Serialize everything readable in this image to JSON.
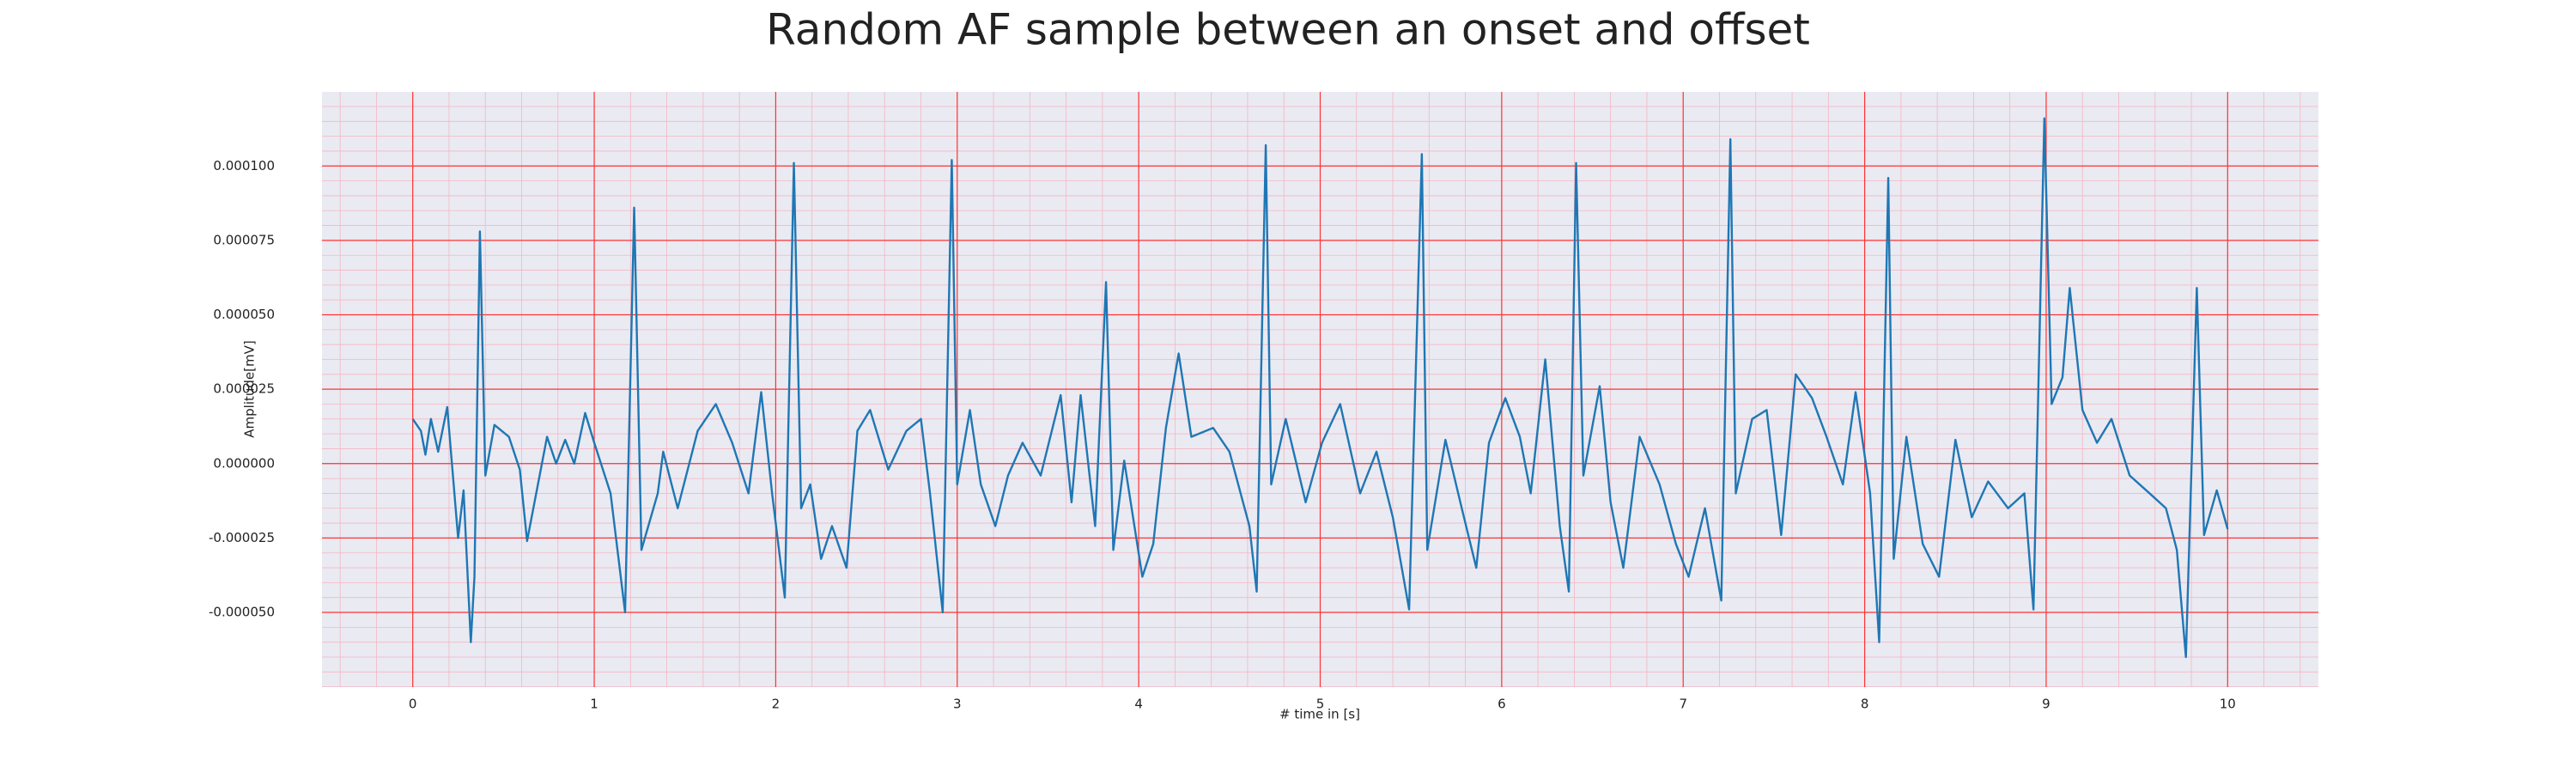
{
  "chart_data": {
    "type": "line",
    "title": "Random AF sample between an onset and offset",
    "xlabel": "# time in [s]",
    "ylabel": "Amplitude[mV]",
    "color": "#1f77b4",
    "grid": true,
    "minor_grid": true,
    "xlim": [
      -0.5,
      10.5
    ],
    "ylim": [
      -7.51e-05,
      0.0001249
    ],
    "xticks": [
      0,
      1,
      2,
      3,
      4,
      5,
      6,
      7,
      8,
      9,
      10
    ],
    "yticks": [
      {
        "value": -5e-05,
        "label": "-0.000050"
      },
      {
        "value": -2.5e-05,
        "label": "-0.000025"
      },
      {
        "value": 0,
        "label": "0.000000"
      },
      {
        "value": 2.5e-05,
        "label": "0.000025"
      },
      {
        "value": 5e-05,
        "label": "0.000050"
      },
      {
        "value": 7.5e-05,
        "label": "0.000075"
      },
      {
        "value": 0.0001,
        "label": "0.000100"
      }
    ],
    "x": [
      0,
      0.045,
      0.07,
      0.1,
      0.14,
      0.19,
      0.25,
      0.28,
      0.32,
      0.34,
      0.37,
      0.4,
      0.45,
      0.53,
      0.59,
      0.63,
      0.74,
      0.79,
      0.84,
      0.89,
      0.95,
      1.0,
      1.09,
      1.17,
      1.22,
      1.26,
      1.35,
      1.38,
      1.46,
      1.57,
      1.67,
      1.76,
      1.85,
      1.92,
      1.98,
      2.05,
      2.1,
      2.14,
      2.19,
      2.25,
      2.31,
      2.39,
      2.45,
      2.52,
      2.62,
      2.72,
      2.8,
      2.85,
      2.92,
      2.97,
      3.0,
      3.07,
      3.13,
      3.21,
      3.28,
      3.36,
      3.46,
      3.57,
      3.63,
      3.68,
      3.76,
      3.82,
      3.86,
      3.92,
      4.02,
      4.08,
      4.15,
      4.22,
      4.29,
      4.41,
      4.5,
      4.61,
      4.65,
      4.7,
      4.73,
      4.81,
      4.92,
      5.01,
      5.11,
      5.22,
      5.31,
      5.4,
      5.49,
      5.56,
      5.59,
      5.69,
      5.78,
      5.86,
      5.93,
      6.02,
      6.1,
      6.16,
      6.24,
      6.32,
      6.37,
      6.41,
      6.45,
      6.54,
      6.6,
      6.67,
      6.76,
      6.87,
      6.96,
      7.03,
      7.12,
      7.21,
      7.26,
      7.29,
      7.38,
      7.46,
      7.54,
      7.62,
      7.71,
      7.79,
      7.88,
      7.95,
      8.03,
      8.08,
      8.13,
      8.16,
      8.23,
      8.32,
      8.41,
      8.5,
      8.59,
      8.68,
      8.79,
      8.88,
      8.93,
      8.99,
      9.03,
      9.09,
      9.13,
      9.2,
      9.28,
      9.36,
      9.46,
      9.57,
      9.66,
      9.72,
      9.77,
      9.83,
      9.87,
      9.94,
      10.0
    ],
    "values": [
      1.5e-05,
      1.1e-05,
      3e-06,
      1.5e-05,
      4e-06,
      1.9e-05,
      -2.5e-05,
      -9e-06,
      -6e-05,
      -3.8e-05,
      7.8e-05,
      -4e-06,
      1.3e-05,
      9e-06,
      -2e-06,
      -2.6e-05,
      9e-06,
      0,
      8e-06,
      0,
      1.7e-05,
      7e-06,
      -1e-05,
      -5e-05,
      8.6e-05,
      -2.9e-05,
      -1e-05,
      4e-06,
      -1.5e-05,
      1.1e-05,
      2e-05,
      7e-06,
      -1e-05,
      2.4e-05,
      -1e-05,
      -4.5e-05,
      0.000101,
      -1.5e-05,
      -7e-06,
      -3.2e-05,
      -2.1e-05,
      -3.5e-05,
      1.1e-05,
      1.8e-05,
      -2e-06,
      1.1e-05,
      1.5e-05,
      -1e-05,
      -5e-05,
      0.000102,
      -7e-06,
      1.8e-05,
      -7e-06,
      -2.1e-05,
      -4e-06,
      7e-06,
      -4e-06,
      2.3e-05,
      -1.3e-05,
      2.3e-05,
      -2.1e-05,
      6.1e-05,
      -2.9e-05,
      1e-06,
      -3.8e-05,
      -2.7e-05,
      1.2e-05,
      3.7e-05,
      9e-06,
      1.2e-05,
      4e-06,
      -2.1e-05,
      -4.3e-05,
      0.000107,
      -7e-06,
      1.5e-05,
      -1.3e-05,
      7e-06,
      2e-05,
      -1e-05,
      4e-06,
      -1.8e-05,
      -4.9e-05,
      0.000104,
      -2.9e-05,
      8e-06,
      -1.5e-05,
      -3.5e-05,
      7e-06,
      2.2e-05,
      9e-06,
      -1e-05,
      3.5e-05,
      -2.1e-05,
      -4.3e-05,
      0.000101,
      -4e-06,
      2.6e-05,
      -1.3e-05,
      -3.5e-05,
      9e-06,
      -7e-06,
      -2.7e-05,
      -3.8e-05,
      -1.5e-05,
      -4.6e-05,
      0.000109,
      -1e-05,
      1.5e-05,
      1.8e-05,
      -2.4e-05,
      3e-05,
      2.2e-05,
      9e-06,
      -7e-06,
      2.4e-05,
      -1e-05,
      -6e-05,
      9.6e-05,
      -3.2e-05,
      9e-06,
      -2.7e-05,
      -3.8e-05,
      8e-06,
      -1.8e-05,
      -6e-06,
      -1.5e-05,
      -1e-05,
      -4.9e-05,
      0.000116,
      2e-05,
      2.9e-05,
      5.9e-05,
      1.8e-05,
      7e-06,
      1.5e-05,
      -4e-06,
      -1e-05,
      -1.5e-05,
      -2.9e-05,
      -6.5e-05,
      5.9e-05,
      -2.4e-05,
      -9e-06,
      -2.2e-05
    ]
  }
}
